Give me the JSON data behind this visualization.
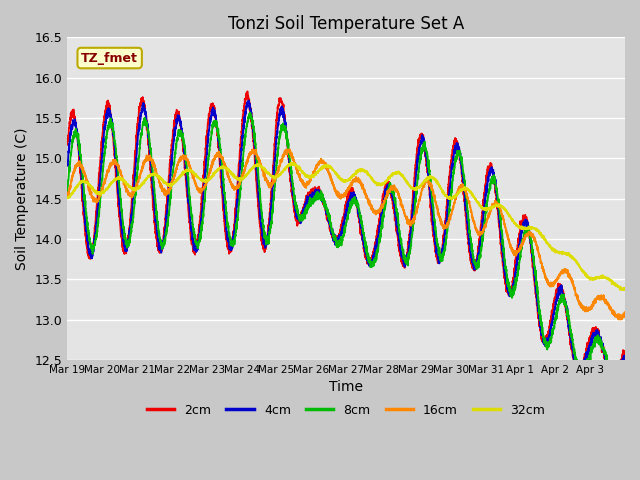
{
  "title": "Tonzi Soil Temperature Set A",
  "xlabel": "Time",
  "ylabel": "Soil Temperature (C)",
  "annotation": "TZ_fmet",
  "ylim": [
    12.5,
    16.5
  ],
  "fig_bg": "#c8c8c8",
  "plot_bg": "#e4e4e4",
  "line_colors": {
    "2cm": "#ee0000",
    "4cm": "#0000cc",
    "8cm": "#00bb00",
    "16cm": "#ff8800",
    "32cm": "#dddd00"
  },
  "xtick_labels": [
    "Mar 19",
    "Mar 20",
    "Mar 21",
    "Mar 22",
    "Mar 23",
    "Mar 24",
    "Mar 25",
    "Mar 26",
    "Mar 27",
    "Mar 28",
    "Mar 29",
    "Mar 30",
    "Mar 31",
    "Apr 1",
    "Apr 2",
    "Apr 3"
  ],
  "ytick_values": [
    12.5,
    13.0,
    13.5,
    14.0,
    14.5,
    15.0,
    15.5,
    16.0,
    16.5
  ],
  "legend_labels": [
    "2cm",
    "4cm",
    "8cm",
    "16cm",
    "32cm"
  ]
}
